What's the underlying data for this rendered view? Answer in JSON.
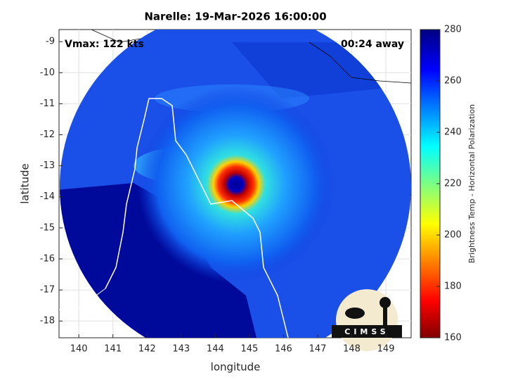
{
  "map": {
    "title": "Narelle: 19-Mar-2026 16:00:00",
    "vmax": "Vmax: 122 kts",
    "time_away": "00:24 away",
    "xlabel": "longitude",
    "ylabel": "latitude",
    "xlim": [
      139.42,
      149.74
    ],
    "ylim": [
      -18.54,
      -8.61
    ],
    "xticks": [
      140,
      141,
      142,
      143,
      144,
      145,
      146,
      147,
      148,
      149
    ],
    "yticks": [
      -9,
      -10,
      -11,
      -12,
      -13,
      -14,
      -15,
      -16,
      -17,
      -18
    ],
    "colorbar": {
      "label": "Brightness Temp - Horizontal Polarization",
      "lim": [
        160,
        280
      ],
      "ticks": [
        160,
        180,
        200,
        220,
        240,
        260,
        280
      ]
    },
    "logo": "CIMSS"
  }
}
